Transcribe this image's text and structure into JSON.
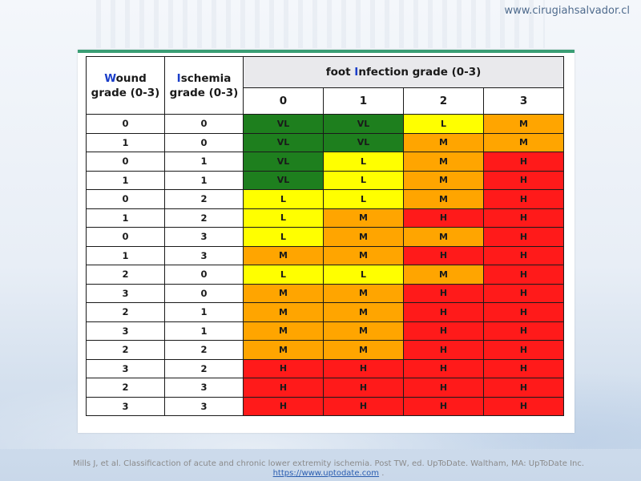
{
  "site_url": "www.cirugiahsalvador.cl",
  "table": {
    "wound_header": {
      "first": "W",
      "rest": "ound grade (0-3)"
    },
    "ischemia_header": {
      "first": "I",
      "rest": "schemia grade (0-3)"
    },
    "infection_header": {
      "before": "foot ",
      "first": "I",
      "rest": "nfection grade (0-3)"
    },
    "infection_grades": [
      "0",
      "1",
      "2",
      "3"
    ],
    "rows": [
      {
        "wound": "0",
        "ischemia": "0",
        "risk": [
          "VL",
          "VL",
          "L",
          "M"
        ]
      },
      {
        "wound": "1",
        "ischemia": "0",
        "risk": [
          "VL",
          "VL",
          "M",
          "M"
        ]
      },
      {
        "wound": "0",
        "ischemia": "1",
        "risk": [
          "VL",
          "L",
          "M",
          "H"
        ]
      },
      {
        "wound": "1",
        "ischemia": "1",
        "risk": [
          "VL",
          "L",
          "M",
          "H"
        ]
      },
      {
        "wound": "0",
        "ischemia": "2",
        "risk": [
          "L",
          "L",
          "M",
          "H"
        ]
      },
      {
        "wound": "1",
        "ischemia": "2",
        "risk": [
          "L",
          "M",
          "H",
          "H"
        ]
      },
      {
        "wound": "0",
        "ischemia": "3",
        "risk": [
          "L",
          "M",
          "M",
          "H"
        ]
      },
      {
        "wound": "1",
        "ischemia": "3",
        "risk": [
          "M",
          "M",
          "H",
          "H"
        ]
      },
      {
        "wound": "2",
        "ischemia": "0",
        "risk": [
          "L",
          "L",
          "M",
          "H"
        ]
      },
      {
        "wound": "3",
        "ischemia": "0",
        "risk": [
          "M",
          "M",
          "H",
          "H"
        ]
      },
      {
        "wound": "2",
        "ischemia": "1",
        "risk": [
          "M",
          "M",
          "H",
          "H"
        ]
      },
      {
        "wound": "3",
        "ischemia": "1",
        "risk": [
          "M",
          "M",
          "H",
          "H"
        ]
      },
      {
        "wound": "2",
        "ischemia": "2",
        "risk": [
          "M",
          "M",
          "H",
          "H"
        ]
      },
      {
        "wound": "3",
        "ischemia": "2",
        "risk": [
          "H",
          "H",
          "H",
          "H"
        ]
      },
      {
        "wound": "2",
        "ischemia": "3",
        "risk": [
          "H",
          "H",
          "H",
          "H"
        ]
      },
      {
        "wound": "3",
        "ischemia": "3",
        "risk": [
          "H",
          "H",
          "H",
          "H"
        ]
      }
    ]
  },
  "risk_colors": {
    "VL": "#1e7f1e",
    "L": "#ffff00",
    "M": "#ffa500",
    "H": "#ff1a1a"
  },
  "citation": {
    "text": "Mills J, et al. Classificaction of acute and chronic lower extremity ischemia. Post TW, ed. UpToDate. Waltham, MA: UpToDate Inc.",
    "link": "https://www.uptodate.com",
    "suffix": " ."
  }
}
